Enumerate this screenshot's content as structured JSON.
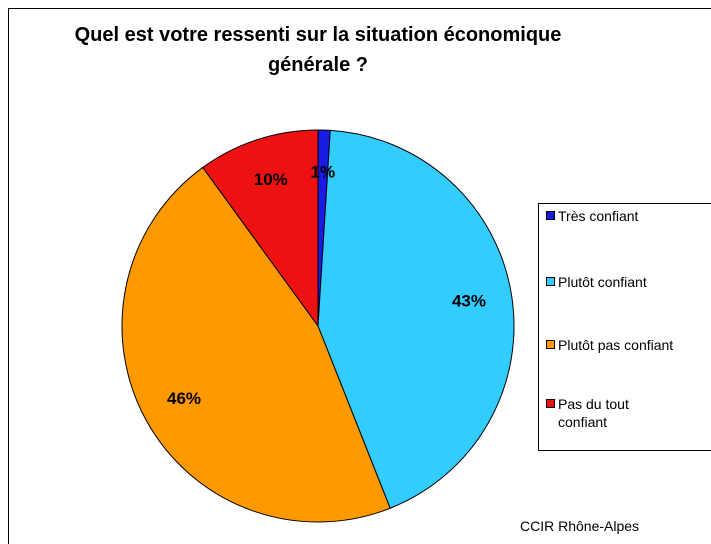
{
  "chart_data": {
    "type": "pie",
    "title": "Quel est votre ressenti sur la situation économique générale ?",
    "categories": [
      "Très confiant",
      "Plutôt confiant",
      "Plutôt pas confiant",
      "Pas du tout confiant"
    ],
    "values": [
      1,
      43,
      46,
      10
    ],
    "value_labels": [
      "1%",
      "43%",
      "46%",
      "10%"
    ],
    "colors": [
      "#1a1ae6",
      "#33ccff",
      "#ff9900",
      "#ee1111"
    ],
    "source": "CCIR Rhône-Alpes",
    "legend": "right"
  }
}
